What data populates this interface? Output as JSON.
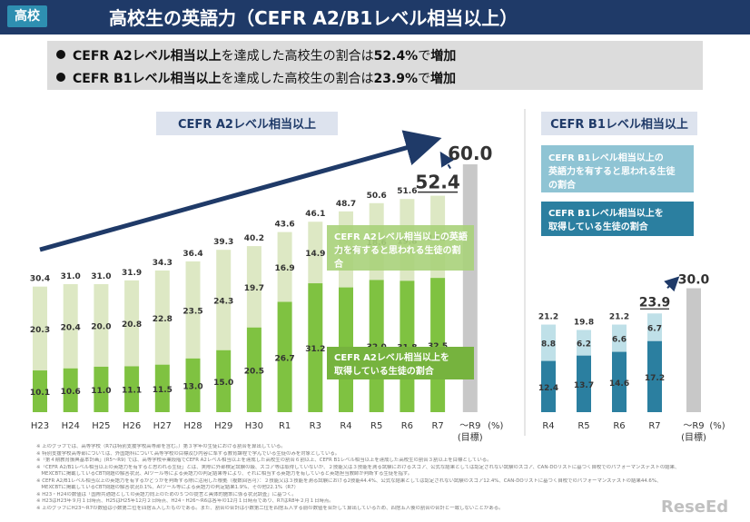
{
  "header": {
    "tag": "高校",
    "title": "高校生の英語力（CEFR A2/B1レベル相当以上）"
  },
  "bullets": [
    {
      "pre": "CEFR A2レベル相当以上",
      "mid": "を達成した高校生の割合は",
      "val": "52.4%",
      "mid2": "で",
      "post": "増加"
    },
    {
      "pre": "CEFR B1レベル相当以上",
      "mid": "を達成した高校生の割合は",
      "val": "23.9%",
      "mid2": "で",
      "post": "増加"
    }
  ],
  "colors": {
    "a2_dark": "#7fc241",
    "a2_light": "#dde8c4",
    "b1_dark": "#2b7fa0",
    "b1_light": "#bfe0e8",
    "target": "#c8c8c8",
    "header": "#1f3a68",
    "arrow": "#1f3a68"
  },
  "chart_data": [
    {
      "type": "bar",
      "title": "CEFR A2レベル相当以上",
      "categories": [
        "H23",
        "H24",
        "H25",
        "H26",
        "H27",
        "H28",
        "H29",
        "H30",
        "R1",
        "R3",
        "R4",
        "R5",
        "R6",
        "R7"
      ],
      "series": [
        {
          "name": "CEFR A2レベル相当以上を取得している生徒の割合",
          "values": [
            10.1,
            10.6,
            11.0,
            11.1,
            11.5,
            13.0,
            15.0,
            20.5,
            26.7,
            31.2,
            30.2,
            32.0,
            31.8,
            32.5
          ]
        },
        {
          "name": "CEFR A2レベル相当以上の英語力を有すると思われる生徒の割合",
          "values": [
            20.3,
            20.4,
            20.0,
            20.8,
            22.8,
            23.5,
            24.3,
            19.7,
            16.9,
            14.9,
            18.4,
            18.6,
            19.8,
            19.9
          ]
        }
      ],
      "totals": [
        "30.4",
        "31.0",
        "31.0",
        "31.9",
        "34.3",
        "36.4",
        "39.3",
        "40.2",
        "43.6",
        "46.1",
        "48.7",
        "50.6",
        "51.6",
        "52.4"
      ],
      "target": {
        "label": "～R9",
        "sub": "(目標)",
        "value": 60.0,
        "value_label": "60.0"
      },
      "unit": "(%)"
    },
    {
      "type": "bar",
      "title": "CEFR B1レベル相当以上",
      "categories": [
        "R4",
        "R5",
        "R6",
        "R7"
      ],
      "series": [
        {
          "name": "CEFR B1レベル相当以上を取得している生徒の割合",
          "values": [
            12.4,
            13.7,
            14.6,
            17.2
          ]
        },
        {
          "name": "CEFR B1レベル相当以上の英語力を有すると思われる生徒の割合",
          "values": [
            8.8,
            6.2,
            6.6,
            6.7
          ]
        }
      ],
      "totals": [
        "21.2",
        "19.8",
        "21.2",
        "23.9"
      ],
      "target": {
        "label": "～R9",
        "sub": "(目標)",
        "value": 30.0,
        "value_label": "30.0"
      },
      "unit": "(%)"
    }
  ],
  "notes": [
    "※ 上のグラフでは、高等学校（R7は特別支援学校高等部を含む。）第３学年の生徒における割合を算出している。",
    "※ 特別支援学校高等部については、外国語科について高等学校の目標及び内容に準ずる教育課程で学んでいる生徒のみを対象としている。",
    "※「第４期教育振興基本計画」(R5～R9) では、高等学校卒業段階でCEFR A2レベル相当以上を達成した高校生の割合６割以上、CEFR B1レベル相当以上を達成した高校生の割合３割以上を目標としている。",
    "※「CEFR A2/B1レベル相当以上の英語力を有すると思われる生徒」とは、実際に外部検定試験の級、スコア等は取得していないが、２技能又は３技能を測る試験におけるスコア、公式な結果としては認定されない試験のスコア、CAN-DOリストに基づく自校でのパフォーマンステストの結果、",
    "　MEXCBTに掲載しているCBT問題の解答状況、AIツール等による英語力の判定結果等により、それに相当する英語力を有していると英語担当教師が判断する生徒を指す。",
    "※ CEFR A2/B1レベル相当以上の英語力を有するかどうかを判断する際に活用した根拠（複数回答可）：２技能又は３技能を測る試験における2技能44.4%、公式な結果としては認定されない試験のスコア12.4%、CAN-DOリストに基づく自校でのパフォーマンステストの結果44.6%、",
    "　MEXCBTに掲載しているCBT問題の解答状況0.1%、AIツール等による英語力の判定結果1.9%、その他22.1%（R7）",
    "※ H23・H24の数値は「国際共通語としての英語力向上のための５つの提言と具体的施策に係る状況調査」に基づく。",
    "※ H23はH23年９月１日時点、H25はH25年12月２日時点、H24・H26～R6は各年の12月１日時点であり、R7はR8年２月１日時点。",
    "※ 上のグラフにH23～R7の数値は小数第二位を四捨五入したものである。また、割合の合計は小数第二位を四捨五入する前の数値を合計して算出しているため、四捨五入後の割合の合計と一致しないことがある。"
  ],
  "logo": "ReseEd"
}
